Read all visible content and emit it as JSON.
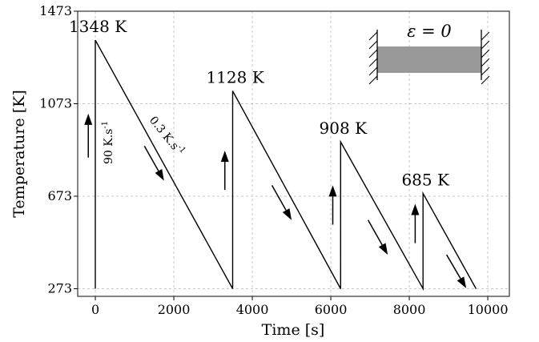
{
  "chart_data": {
    "type": "line",
    "title": "",
    "xlabel": "Time [s]",
    "ylabel": "Temperature [K]",
    "xlim": [
      -450,
      10550
    ],
    "ylim": [
      240,
      1473
    ],
    "x_ticks": [
      0,
      2000,
      4000,
      6000,
      8000,
      10000
    ],
    "x_tick_labels": [
      "0",
      "2000",
      "4000",
      "6000",
      "8000",
      "10000"
    ],
    "y_ticks": [
      273,
      673,
      1073,
      1473
    ],
    "y_tick_labels": [
      "273",
      "673",
      "1073",
      "1473"
    ],
    "grid": true,
    "series": [
      {
        "color": "#000000",
        "x": [
          0,
          0,
          3500,
          3500,
          6250,
          6250,
          8350,
          8350,
          9700
        ],
        "y": [
          273,
          1348,
          273,
          1128,
          273,
          908,
          273,
          685,
          273
        ]
      }
    ],
    "peak_annotations": [
      {
        "text": "1348 K",
        "x": 0,
        "y": 1348
      },
      {
        "text": "1128 K",
        "x": 3500,
        "y": 1128
      },
      {
        "text": "908 K",
        "x": 6250,
        "y": 908
      },
      {
        "text": "685 K",
        "x": 8350,
        "y": 685
      }
    ],
    "rate_annotations": {
      "heating": {
        "text": "90 K.s",
        "superscript": "-1"
      },
      "cooling": {
        "text": "0.3 K.s",
        "superscript": "-1"
      }
    },
    "arrows": [
      {
        "direction": "up",
        "x": -180,
        "y_from": 840,
        "y_to": 1030
      },
      {
        "direction": "down",
        "x0": 1250,
        "y0": 890,
        "x1": 1750,
        "y1": 740
      },
      {
        "direction": "up",
        "x": 3300,
        "y_from": 700,
        "y_to": 870
      },
      {
        "direction": "down",
        "x0": 4500,
        "y0": 720,
        "x1": 5000,
        "y1": 570
      },
      {
        "direction": "up",
        "x": 6050,
        "y_from": 550,
        "y_to": 720
      },
      {
        "direction": "down",
        "x0": 6950,
        "y0": 570,
        "x1": 7450,
        "y1": 420
      },
      {
        "direction": "up",
        "x": 8150,
        "y_from": 470,
        "y_to": 640
      },
      {
        "direction": "down",
        "x0": 8950,
        "y0": 420,
        "x1": 9450,
        "y1": 275
      }
    ],
    "inset": {
      "strain_label": "ε = 0",
      "bar_color": "#999999"
    }
  }
}
